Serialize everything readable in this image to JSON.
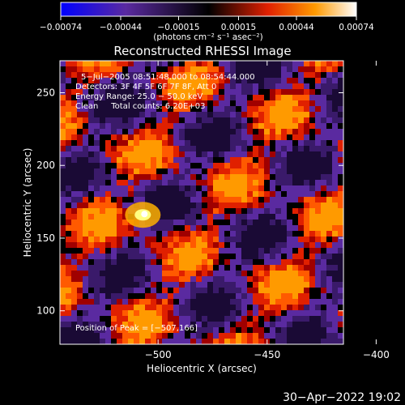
{
  "chart_data": {
    "type": "heatmap",
    "title": "Reconstructed RHESSI Image",
    "xlabel": "Heliocentric X (arcsec)",
    "ylabel": "Heliocentric Y (arcsec)",
    "xlim": [
      -545,
      -415
    ],
    "ylim": [
      77,
      272
    ],
    "x_ticks": [
      -500,
      -450,
      -400
    ],
    "y_ticks": [
      100,
      150,
      200,
      250
    ],
    "x_tick_labels": [
      "−500",
      "−450",
      "−400"
    ],
    "y_tick_labels": [
      "100",
      "150",
      "200",
      "250"
    ],
    "colorbar": {
      "range": [
        -0.00074,
        0.00074
      ],
      "tick_values": [
        -0.00074,
        -0.00044,
        -0.00015,
        0.00015,
        0.00044,
        0.00074
      ],
      "tick_labels": [
        "−0.00074",
        "−0.00044",
        "−0.00015",
        "0.00015",
        "0.00044",
        "0.00074"
      ],
      "unit_label": "(photons cm⁻² s⁻¹ asec⁻²)"
    },
    "annotations": {
      "time_range": "5−Jul−2005 08:51:48.000 to 08:54:44.000",
      "detectors": "Detectors: 3F 4F 5F 6F 7F 8F, Att 0",
      "energy": "Energy Range: 25.0 − 50.0 keV",
      "clean": "Clean     Total counts: 6.20E+03",
      "peak": "Position of Peak = [−507,166]"
    },
    "peak": {
      "x": -507,
      "y": 166
    },
    "timestamp": "30−Apr−2022 19:02",
    "colors": {
      "low": "#0000ff",
      "mid_low": "#5a2aa0",
      "zero": "#000000",
      "mid_high": "#e02000",
      "high": "#ffffff"
    }
  }
}
